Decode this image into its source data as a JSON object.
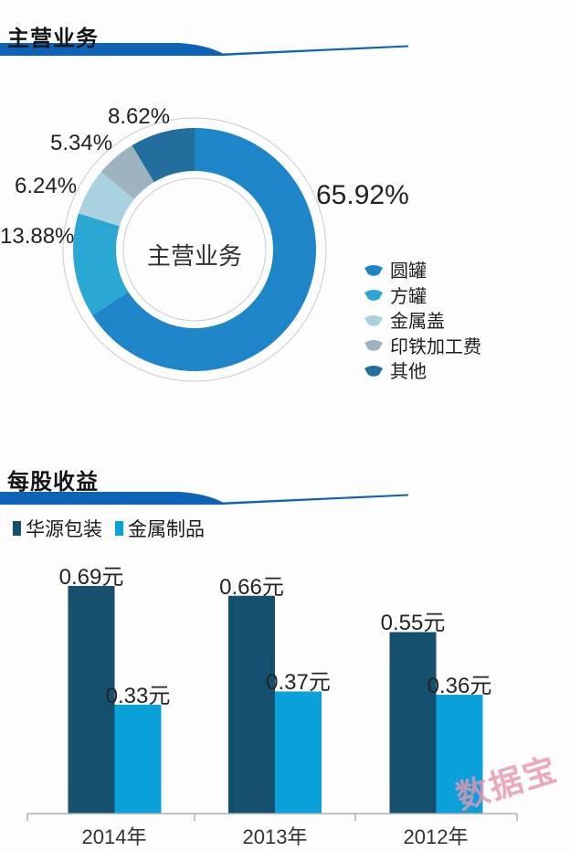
{
  "page": {
    "section1_title": "主营业务",
    "section2_title": "每股收益",
    "accent_color": "#0e63b8",
    "watermark": "数据宝",
    "watermark_color": "#e795ac"
  },
  "chart_data": [
    {
      "type": "pie",
      "subtype": "donut",
      "title": "主营业务",
      "center_label": "主营业务",
      "legend_position": "right",
      "start_angle_deg": 0,
      "direction": "clockwise",
      "categories": [
        "圆罐",
        "方罐",
        "金属盖",
        "印铁加工费",
        "其他"
      ],
      "values": [
        65.92,
        13.88,
        6.24,
        5.34,
        8.62
      ],
      "value_labels": [
        "65.92%",
        "13.88%",
        "6.24%",
        "5.34%",
        "8.62%"
      ],
      "colors": [
        "#1e86c8",
        "#2aa7d3",
        "#a9d1e0",
        "#9db4c0",
        "#226e9d"
      ]
    },
    {
      "type": "bar",
      "title": "每股收益",
      "unit": "元",
      "categories": [
        "2014年",
        "2013年",
        "2012年"
      ],
      "series": [
        {
          "name": "华源包装",
          "color": "#14506e",
          "values": [
            0.69,
            0.66,
            0.55
          ],
          "value_labels": [
            "0.69元",
            "0.66元",
            "0.55元"
          ]
        },
        {
          "name": "金属制品",
          "color": "#0aa1da",
          "values": [
            0.33,
            0.37,
            0.36
          ],
          "value_labels": [
            "0.33元",
            "0.37元",
            "0.36元"
          ]
        }
      ],
      "ylim": [
        0,
        0.78
      ],
      "grid": false,
      "legend_position": "top-left",
      "axis_color": "#b0b0b0"
    }
  ]
}
